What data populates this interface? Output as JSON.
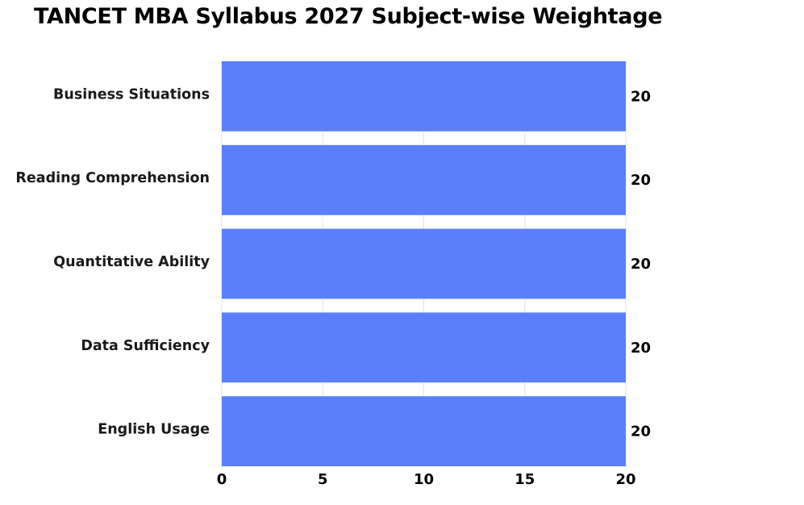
{
  "chart_data": {
    "type": "bar",
    "orientation": "horizontal",
    "title": "TANCET MBA Syllabus 2027 Subject-wise Weightage",
    "xlabel": "",
    "ylabel": "",
    "categories": [
      "Business Situations",
      "Reading Comprehension",
      "Quantitative Ability",
      "Data Sufficiency",
      "English Usage"
    ],
    "values": [
      20,
      20,
      20,
      20,
      20
    ],
    "value_labels": [
      "20",
      "20",
      "20",
      "20",
      "20"
    ],
    "xlim": [
      0,
      20
    ],
    "xticks": [
      0,
      5,
      10,
      15,
      20
    ],
    "xtick_labels": [
      "0",
      "5",
      "10",
      "15",
      "20"
    ],
    "grid": "vertical",
    "legend": "none",
    "colors": {
      "bar": "#5b7ffb",
      "grid": "#e6e6e6",
      "text": "#000000"
    }
  }
}
